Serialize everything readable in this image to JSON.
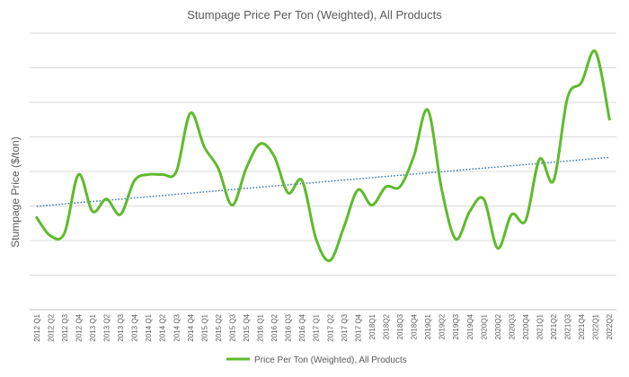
{
  "chart_data": {
    "type": "line",
    "title": "Stumpage Price Per Ton (Weighted), All Products",
    "xlabel": "",
    "ylabel": "Stumpage Price ($/ton)",
    "x": [
      "2012 Q1",
      "2012 Q2",
      "2012 Q3",
      "2012 Q4",
      "2013 Q1",
      "2013 Q2",
      "2013 Q3",
      "2013 Q4",
      "2014 Q1",
      "2014 Q2",
      "2014 Q3",
      "2014 Q4",
      "2015 Q1",
      "2015 Q2",
      "2015 Q3",
      "2015 Q4",
      "2016 Q1",
      "2016 Q2",
      "2016 Q3",
      "2016 Q4",
      "2017 Q1",
      "2017 Q2",
      "2017 Q3",
      "2017 Q4",
      "2018Q1",
      "2018Q2",
      "2018Q3",
      "2018Q4",
      "2019Q1",
      "2019Q2",
      "2019Q3",
      "2019Q4",
      "2020Q1",
      "2020Q2",
      "2020Q3",
      "2020Q4",
      "2021Q1",
      "2021Q2",
      "2021Q3",
      "2021Q4",
      "2022Q1",
      "2022Q2"
    ],
    "series": [
      {
        "name": "Price Per Ton (Weighted), All Products",
        "color": "#5fba2c",
        "values": [
          2.0,
          1.4,
          1.5,
          3.4,
          2.2,
          2.6,
          2.1,
          3.2,
          3.4,
          3.4,
          3.5,
          5.4,
          4.3,
          3.6,
          2.4,
          3.6,
          4.4,
          4.0,
          2.8,
          3.2,
          1.3,
          0.6,
          1.7,
          2.9,
          2.4,
          3.0,
          3.0,
          4.0,
          5.5,
          2.9,
          1.3,
          2.2,
          2.6,
          1.0,
          2.1,
          1.9,
          3.9,
          3.2,
          5.9,
          6.4,
          7.4,
          5.2
        ]
      }
    ],
    "trendline": {
      "type": "linear",
      "color": "#2e75b6",
      "style": "dotted"
    },
    "ylim": [
      -1,
      8
    ],
    "gridlines": 8,
    "grid": true,
    "legend": "bottom"
  }
}
